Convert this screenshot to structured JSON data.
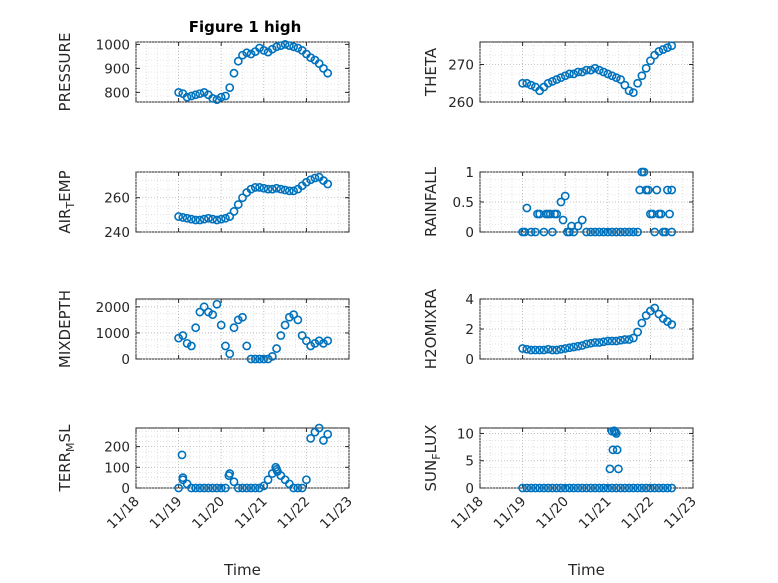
{
  "title": "Figure 1 high",
  "colors": {
    "marker": "#0072BD",
    "axes": "#262626",
    "grid": "#b4b4b4",
    "background": "#ffffff"
  },
  "chart_data": [
    {
      "type": "scatter",
      "title": "Figure 1 high",
      "ylabel": "PRESSURE",
      "xlabel": "",
      "ylim": [
        760,
        1010
      ],
      "yticks": [
        800,
        900,
        1000
      ],
      "ytick_labels": [
        "800",
        "900",
        "1000"
      ],
      "xlim": [
        18,
        23
      ],
      "grid": true,
      "minor_grid": true,
      "marker": "circle",
      "x": [
        19.0,
        19.1,
        19.2,
        19.3,
        19.4,
        19.5,
        19.6,
        19.7,
        19.8,
        19.9,
        20.0,
        20.1,
        20.2,
        20.3,
        20.4,
        20.5,
        20.6,
        20.7,
        20.8,
        20.9,
        21.0,
        21.1,
        21.2,
        21.3,
        21.4,
        21.5,
        21.6,
        21.7,
        21.8,
        21.9,
        22.0,
        22.1,
        22.2,
        22.3,
        22.4,
        22.5
      ],
      "y": [
        800,
        795,
        780,
        785,
        790,
        795,
        800,
        790,
        775,
        770,
        780,
        785,
        820,
        880,
        930,
        955,
        965,
        960,
        970,
        985,
        975,
        968,
        980,
        990,
        995,
        1000,
        995,
        990,
        985,
        975,
        960,
        945,
        935,
        920,
        900,
        880
      ]
    },
    {
      "type": "scatter",
      "title": "",
      "ylabel": "THETA",
      "xlabel": "",
      "ylim": [
        260,
        276
      ],
      "yticks": [
        260,
        270
      ],
      "ytick_labels": [
        "260",
        "270"
      ],
      "xlim": [
        18,
        23
      ],
      "grid": true,
      "minor_grid": true,
      "marker": "circle",
      "x": [
        19.0,
        19.1,
        19.2,
        19.3,
        19.4,
        19.5,
        19.6,
        19.7,
        19.8,
        19.9,
        20.0,
        20.1,
        20.2,
        20.3,
        20.4,
        20.5,
        20.6,
        20.7,
        20.8,
        20.9,
        21.0,
        21.1,
        21.2,
        21.3,
        21.4,
        21.5,
        21.6,
        21.7,
        21.8,
        21.9,
        22.0,
        22.1,
        22.2,
        22.3,
        22.4,
        22.5
      ],
      "y": [
        265,
        265,
        264.5,
        264,
        263,
        264,
        265,
        265.5,
        266,
        266.5,
        267,
        267.5,
        267.5,
        268,
        268,
        268.5,
        268.5,
        269,
        268.5,
        268,
        267.5,
        267,
        266.5,
        266,
        264.5,
        263,
        262.5,
        265,
        267,
        269,
        271,
        272.5,
        273.5,
        274,
        274.5,
        275
      ]
    },
    {
      "type": "scatter",
      "title": "",
      "ylabel": "AIR_TEMP",
      "xlabel": "",
      "ylim": [
        240,
        275
      ],
      "yticks": [
        240,
        260
      ],
      "ytick_labels": [
        "240",
        "260"
      ],
      "xlim": [
        18,
        23
      ],
      "grid": true,
      "minor_grid": true,
      "marker": "circle",
      "x": [
        19.0,
        19.1,
        19.2,
        19.3,
        19.4,
        19.5,
        19.6,
        19.7,
        19.8,
        19.9,
        20.0,
        20.1,
        20.2,
        20.3,
        20.4,
        20.5,
        20.6,
        20.7,
        20.8,
        20.9,
        21.0,
        21.1,
        21.2,
        21.3,
        21.4,
        21.5,
        21.6,
        21.7,
        21.8,
        21.9,
        22.0,
        22.1,
        22.2,
        22.3,
        22.4,
        22.5
      ],
      "y": [
        249,
        248.5,
        248,
        247.5,
        247,
        247,
        247.5,
        248,
        247.5,
        247,
        247.5,
        248,
        249,
        252,
        256,
        260,
        263,
        265,
        266,
        266,
        265.5,
        265,
        265,
        265.5,
        265,
        264.5,
        264,
        264,
        265,
        267,
        269,
        270.5,
        271.5,
        272,
        270,
        268
      ]
    },
    {
      "type": "scatter",
      "title": "",
      "ylabel": "RAINFALL",
      "xlabel": "",
      "ylim": [
        0,
        1
      ],
      "yticks": [
        0,
        0.5,
        1
      ],
      "ytick_labels": [
        "0",
        "0.5",
        "1"
      ],
      "xlim": [
        18,
        23
      ],
      "grid": true,
      "minor_grid": true,
      "marker": "circle",
      "x": [
        19.0,
        19.1,
        19.2,
        19.3,
        19.4,
        19.5,
        19.6,
        19.7,
        19.8,
        19.9,
        20.0,
        20.1,
        20.2,
        20.3,
        20.4,
        20.5,
        20.6,
        20.7,
        20.8,
        20.9,
        21.0,
        21.1,
        21.2,
        21.3,
        21.4,
        21.5,
        21.6,
        21.7,
        21.8,
        21.9,
        22.0,
        22.1,
        22.2,
        22.3,
        22.4,
        22.5,
        19.05,
        19.35,
        19.55,
        19.65,
        19.75,
        19.95,
        20.05,
        20.15,
        21.75,
        21.85,
        21.95,
        22.05,
        22.15,
        22.25,
        22.35,
        22.45,
        22.5
      ],
      "y": [
        0,
        0.4,
        0,
        0,
        0.3,
        0,
        0.3,
        0,
        0.3,
        0.5,
        0.6,
        0,
        0,
        0.1,
        0.2,
        0,
        0,
        0,
        0,
        0,
        0,
        0,
        0,
        0,
        0,
        0,
        0,
        0,
        1,
        0.7,
        0.3,
        0,
        0.3,
        0,
        0.7,
        0,
        0,
        0.3,
        0.3,
        0.3,
        0.3,
        0.2,
        0,
        0.1,
        0.7,
        1,
        0.7,
        0.3,
        0.7,
        0.3,
        0,
        0.3,
        0.7
      ]
    },
    {
      "type": "scatter",
      "title": "",
      "ylabel": "MIXDEPTH",
      "xlabel": "",
      "ylim": [
        0,
        2300
      ],
      "yticks": [
        0,
        1000,
        2000
      ],
      "ytick_labels": [
        "0",
        "1000",
        "2000"
      ],
      "xlim": [
        18,
        23
      ],
      "grid": true,
      "minor_grid": true,
      "marker": "circle",
      "x": [
        19.0,
        19.1,
        19.2,
        19.3,
        19.4,
        19.5,
        19.6,
        19.7,
        19.8,
        19.9,
        20.0,
        20.1,
        20.2,
        20.3,
        20.4,
        20.5,
        20.6,
        20.7,
        20.8,
        20.9,
        21.0,
        21.1,
        21.2,
        21.3,
        21.4,
        21.5,
        21.6,
        21.7,
        21.8,
        21.9,
        22.0,
        22.1,
        22.2,
        22.3,
        22.4,
        22.5
      ],
      "y": [
        800,
        900,
        600,
        500,
        1200,
        1800,
        2000,
        1800,
        1700,
        2100,
        1300,
        500,
        200,
        1200,
        1500,
        1600,
        500,
        0,
        0,
        0,
        0,
        0,
        100,
        400,
        900,
        1300,
        1600,
        1700,
        1500,
        900,
        700,
        500,
        600,
        700,
        600,
        700
      ]
    },
    {
      "type": "scatter",
      "title": "",
      "ylabel": "H2OMIXRA",
      "xlabel": "",
      "ylim": [
        0,
        4
      ],
      "yticks": [
        0,
        2,
        4
      ],
      "ytick_labels": [
        "0",
        "2",
        "4"
      ],
      "xlim": [
        18,
        23
      ],
      "grid": true,
      "minor_grid": true,
      "marker": "circle",
      "x": [
        19.0,
        19.1,
        19.2,
        19.3,
        19.4,
        19.5,
        19.6,
        19.7,
        19.8,
        19.9,
        20.0,
        20.1,
        20.2,
        20.3,
        20.4,
        20.5,
        20.6,
        20.7,
        20.8,
        20.9,
        21.0,
        21.1,
        21.2,
        21.3,
        21.4,
        21.5,
        21.6,
        21.7,
        21.8,
        21.9,
        22.0,
        22.1,
        22.2,
        22.3,
        22.4,
        22.5
      ],
      "y": [
        0.7,
        0.65,
        0.6,
        0.6,
        0.6,
        0.6,
        0.65,
        0.6,
        0.6,
        0.65,
        0.7,
        0.75,
        0.8,
        0.85,
        0.9,
        1.0,
        1.05,
        1.1,
        1.1,
        1.15,
        1.2,
        1.2,
        1.2,
        1.25,
        1.3,
        1.3,
        1.4,
        1.8,
        2.4,
        2.9,
        3.2,
        3.4,
        3.0,
        2.7,
        2.5,
        2.3
      ]
    },
    {
      "type": "scatter",
      "title": "",
      "ylabel": "TERR_MSL",
      "xlabel": "Time",
      "ylim": [
        0,
        290
      ],
      "yticks": [
        0,
        100,
        200
      ],
      "ytick_labels": [
        "0",
        "100",
        "200"
      ],
      "xlim": [
        18,
        23
      ],
      "xticks": [
        18,
        19,
        20,
        21,
        22,
        23
      ],
      "xtick_labels": [
        "11/18",
        "11/19",
        "11/20",
        "11/21",
        "11/22",
        "11/23"
      ],
      "grid": true,
      "minor_grid": true,
      "marker": "circle",
      "x": [
        19.0,
        19.1,
        19.2,
        19.3,
        19.4,
        19.5,
        19.6,
        19.7,
        19.8,
        19.9,
        20.0,
        20.1,
        20.2,
        20.3,
        20.4,
        20.5,
        20.6,
        20.7,
        20.8,
        20.9,
        21.0,
        21.1,
        21.2,
        21.3,
        21.4,
        21.5,
        21.6,
        21.7,
        21.8,
        21.9,
        22.0,
        22.1,
        22.2,
        22.3,
        22.4,
        22.5,
        19.08,
        19.1,
        20.18,
        21.28,
        21.32
      ],
      "y": [
        0,
        40,
        20,
        0,
        0,
        0,
        0,
        0,
        0,
        0,
        0,
        0,
        70,
        30,
        0,
        0,
        0,
        0,
        0,
        0,
        10,
        40,
        70,
        90,
        60,
        40,
        20,
        0,
        0,
        0,
        40,
        240,
        270,
        290,
        230,
        260,
        160,
        50,
        60,
        100,
        80
      ]
    },
    {
      "type": "scatter",
      "title": "",
      "ylabel": "SUN_FLUX",
      "xlabel": "Time",
      "ylim": [
        0,
        11
      ],
      "yticks": [
        0,
        5,
        10
      ],
      "ytick_labels": [
        "0",
        "5",
        "10"
      ],
      "xlim": [
        18,
        23
      ],
      "xticks": [
        18,
        19,
        20,
        21,
        22,
        23
      ],
      "xtick_labels": [
        "11/18",
        "11/19",
        "11/20",
        "11/21",
        "11/22",
        "11/23"
      ],
      "grid": true,
      "minor_grid": true,
      "marker": "circle",
      "x": [
        19.0,
        19.1,
        19.2,
        19.3,
        19.4,
        19.5,
        19.6,
        19.7,
        19.8,
        19.9,
        20.0,
        20.1,
        20.2,
        20.3,
        20.4,
        20.5,
        20.6,
        20.7,
        20.8,
        20.9,
        21.0,
        21.1,
        21.2,
        21.3,
        21.4,
        21.5,
        21.6,
        21.7,
        21.8,
        21.9,
        22.0,
        22.1,
        22.2,
        22.3,
        22.4,
        22.5,
        21.05,
        21.12,
        21.15,
        21.18,
        21.2,
        21.1,
        21.22,
        21.25
      ],
      "y": [
        0,
        0,
        0,
        0,
        0,
        0,
        0,
        0,
        0,
        0,
        0,
        0,
        0,
        0,
        0,
        0,
        0,
        0,
        0,
        0,
        0,
        0,
        0,
        0,
        0,
        0,
        0,
        0,
        0,
        0,
        0,
        0,
        0,
        0,
        0,
        0,
        3.5,
        7,
        10.5,
        10.3,
        10,
        10.4,
        7,
        3.5
      ]
    }
  ]
}
